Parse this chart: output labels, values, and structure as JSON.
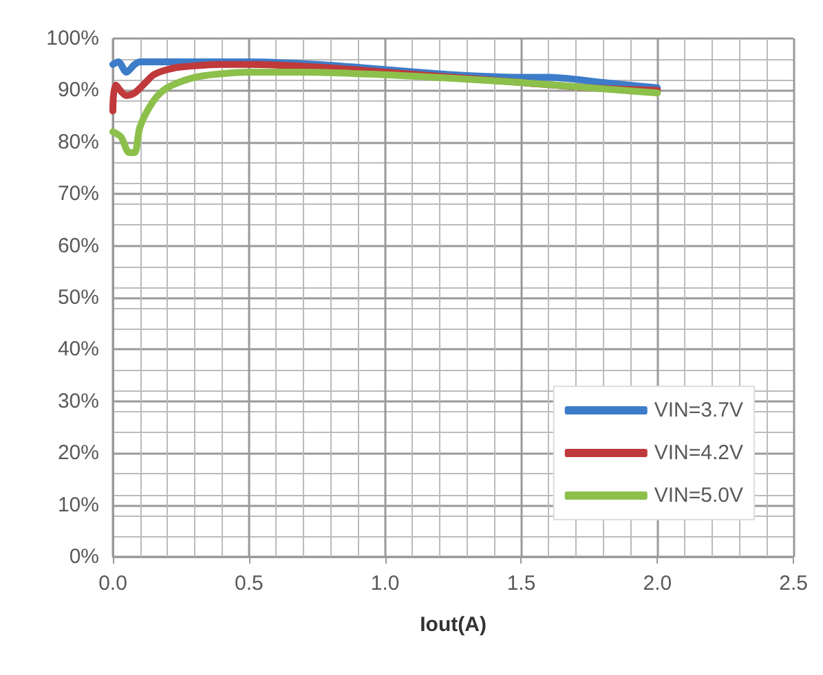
{
  "chart_data": {
    "type": "line",
    "xlabel": "Iout(A)",
    "xlim": [
      0,
      2.5
    ],
    "xticks": [
      {
        "value": 0,
        "label": "0.0"
      },
      0.5,
      {
        "value": 1,
        "label": "1.0"
      },
      1.5,
      {
        "value": 2,
        "label": "2.0"
      },
      2.5
    ],
    "ylim": [
      0,
      100
    ],
    "yticks": [
      {
        "value": 0,
        "label": "0%"
      },
      {
        "value": 10,
        "label": "10%"
      },
      {
        "value": 20,
        "label": "20%"
      },
      {
        "value": 30,
        "label": "30%"
      },
      {
        "value": 40,
        "label": "40%"
      },
      {
        "value": 50,
        "label": "50%"
      },
      {
        "value": 60,
        "label": "60%"
      },
      {
        "value": 70,
        "label": "70%"
      },
      {
        "value": 80,
        "label": "80%"
      },
      {
        "value": 90,
        "label": "90%"
      },
      {
        "value": 100,
        "label": "100%"
      }
    ],
    "grid": true,
    "legend": "bottom right",
    "marker": "none",
    "line_style": "solid",
    "series": [
      {
        "name": "VIN=3.7V",
        "color": "#3d7cc9",
        "x": [
          0,
          0.02,
          0.05,
          0.08,
          0.1,
          0.2,
          0.3,
          0.5,
          0.75,
          1.0,
          1.25,
          1.5,
          1.6,
          1.8,
          2.0
        ],
        "values": [
          95,
          95.5,
          93.5,
          95,
          95.5,
          95.5,
          95.5,
          95.5,
          95,
          94,
          93,
          92.5,
          92.5,
          91.5,
          90.5
        ]
      },
      {
        "name": "VIN=4.2V",
        "color": "#c0393b",
        "x": [
          0,
          0.01,
          0.05,
          0.08,
          0.12,
          0.15,
          0.2,
          0.25,
          0.4,
          0.5,
          0.75,
          1.0,
          1.25,
          1.5,
          1.75,
          2.0
        ],
        "values": [
          86,
          91,
          89,
          89.5,
          91.5,
          93,
          94,
          94.5,
          95,
          95,
          94.5,
          93.5,
          92.5,
          91.5,
          90.5,
          90
        ]
      },
      {
        "name": "VIN=5.0V",
        "color": "#8cc04b",
        "x": [
          0,
          0.03,
          0.06,
          0.08,
          0.1,
          0.15,
          0.2,
          0.3,
          0.4,
          0.5,
          0.7,
          1.0,
          1.25,
          1.5,
          1.75,
          2.0
        ],
        "values": [
          82,
          81,
          78,
          78,
          83,
          88,
          90.5,
          92.5,
          93.2,
          93.5,
          93.5,
          93,
          92.3,
          91.5,
          90.5,
          89.5
        ]
      }
    ]
  }
}
